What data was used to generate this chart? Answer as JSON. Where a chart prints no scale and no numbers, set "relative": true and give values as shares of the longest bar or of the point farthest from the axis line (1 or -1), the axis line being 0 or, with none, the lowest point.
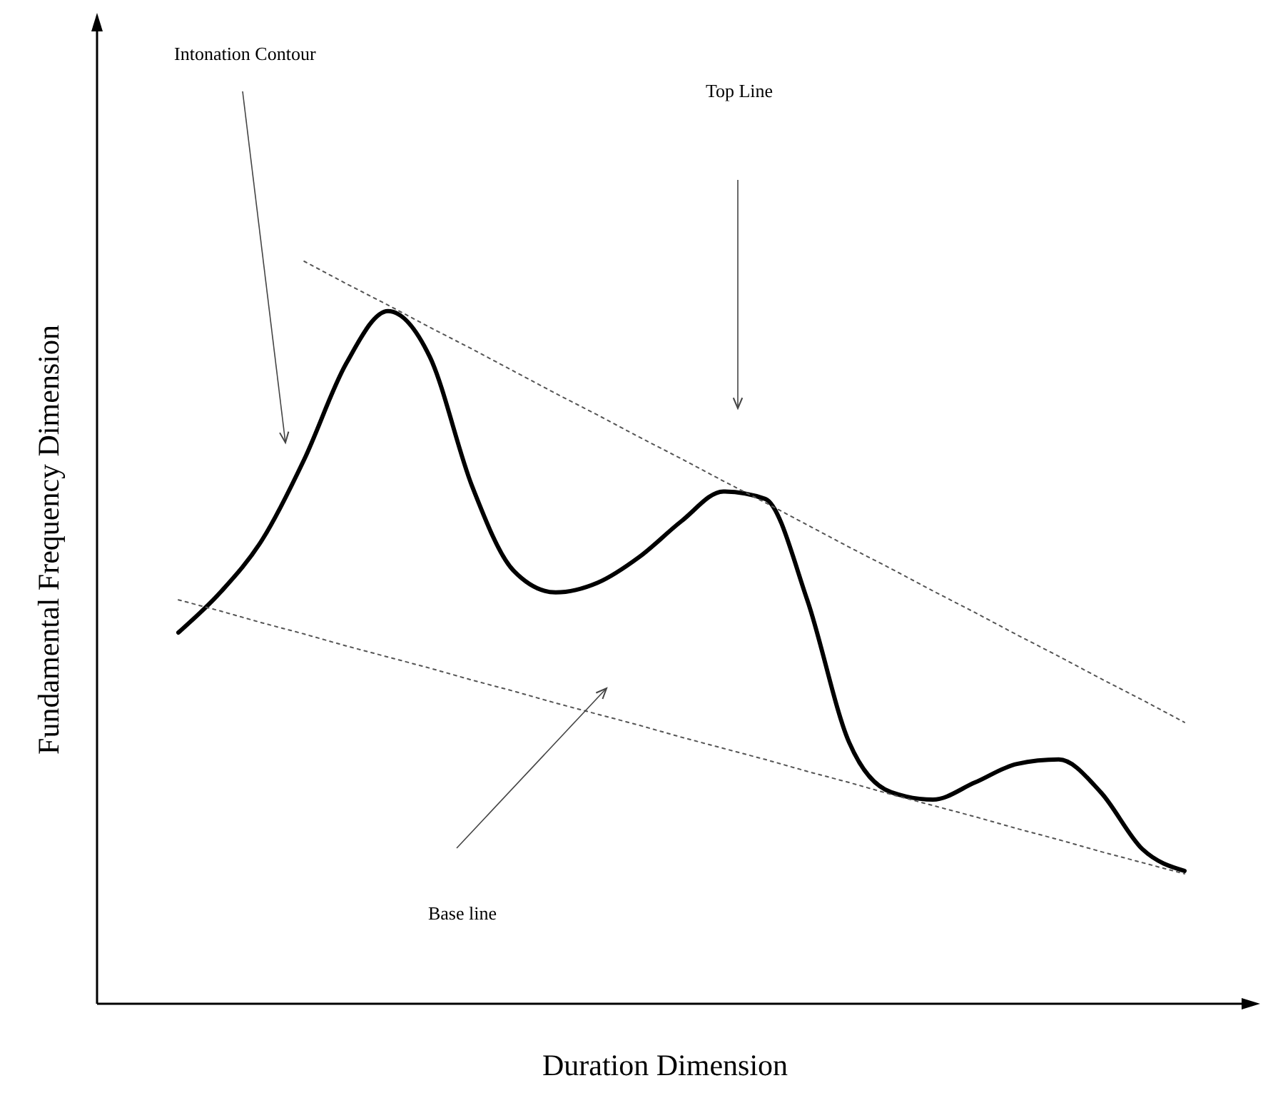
{
  "chart_data": {
    "type": "line",
    "relative": true,
    "xlabel": "Duration Dimension",
    "ylabel": "Fundamental Frequency Dimension",
    "categories": [
      null,
      null,
      null,
      null,
      null,
      null,
      null,
      null,
      null,
      null,
      null,
      null,
      null,
      null,
      null,
      null,
      null,
      null,
      null,
      null,
      null,
      null,
      null,
      null,
      null
    ],
    "series": [
      {
        "color": "#000000",
        "line_style": "solid",
        "values": [
          0.5,
          0.554,
          0.625,
          0.733,
          0.862,
          0.933,
          0.871,
          0.698,
          0.583,
          0.554,
          0.567,
          0.602,
          0.65,
          0.69,
          0.68,
          0.544,
          0.352,
          0.285,
          0.275,
          0.298,
          0.323,
          0.329,
          0.285,
          0.208,
          0.179
        ]
      },
      {
        "color": "#555555",
        "line_style": "dotted",
        "values": [
          null,
          null,
          null,
          1,
          0.97,
          0.941,
          0.911,
          0.882,
          0.852,
          0.822,
          0.793,
          0.763,
          0.734,
          0.704,
          0.675,
          0.645,
          0.615,
          0.586,
          0.556,
          0.527,
          0.497,
          0.468,
          0.438,
          0.409,
          0.379
        ]
      },
      {
        "color": "#555555",
        "line_style": "dotted",
        "values": [
          0.544,
          0.529,
          0.513,
          0.498,
          0.482,
          0.467,
          0.452,
          0.436,
          0.421,
          0.405,
          0.39,
          0.375,
          0.359,
          0.344,
          0.329,
          0.313,
          0.298,
          0.282,
          0.267,
          0.252,
          0.236,
          0.221,
          0.205,
          0.19,
          0.175
        ]
      }
    ],
    "annotations": [
      "Intonation Contour",
      "Top Line",
      "Base line"
    ]
  }
}
